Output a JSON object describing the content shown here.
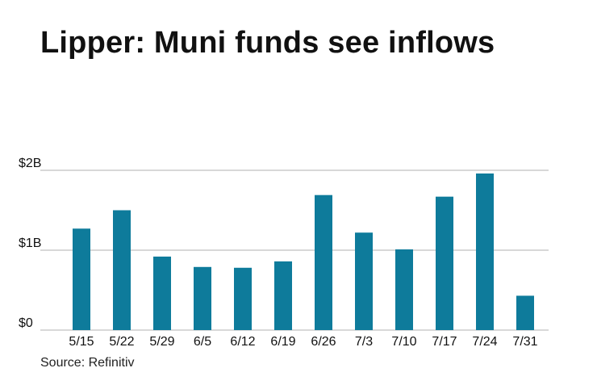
{
  "title": "Lipper: Muni funds see inflows",
  "source": "Source: Refinitiv",
  "colors": {
    "bar": "#0e7b9b",
    "grid": "#b0b0b0",
    "axis": "#b0b0b0"
  },
  "chart_data": {
    "type": "bar",
    "title": "Lipper: Muni funds see inflows",
    "xlabel": "",
    "ylabel": "",
    "categories": [
      "5/15",
      "5/22",
      "5/29",
      "6/5",
      "6/12",
      "6/19",
      "6/26",
      "7/3",
      "7/10",
      "7/17",
      "7/24",
      "7/31"
    ],
    "values": [
      1.27,
      1.5,
      0.92,
      0.79,
      0.78,
      0.86,
      1.69,
      1.22,
      1.01,
      1.67,
      1.96,
      0.43
    ],
    "unit": "billion USD",
    "ylim": [
      0,
      2
    ],
    "yticks": [
      0,
      1,
      2
    ],
    "ytick_labels": [
      "$0",
      "$1B",
      "$2B"
    ],
    "grid": true,
    "legend": "none"
  }
}
